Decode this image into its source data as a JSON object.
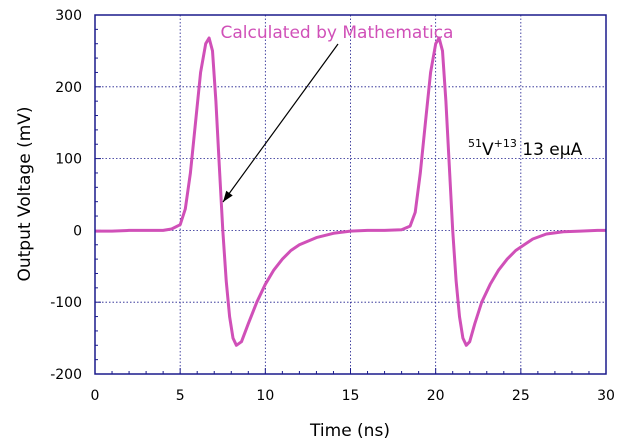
{
  "chart_data": {
    "type": "line",
    "xlabel": "Time (ns)",
    "ylabel": "Output Voltage (mV)",
    "xlim": [
      0,
      30
    ],
    "ylim": [
      -200,
      300
    ],
    "x_ticks": [
      "0",
      "5",
      "10",
      "15",
      "20",
      "25",
      "30"
    ],
    "y_ticks": [
      "300",
      "200",
      "100",
      "0",
      "-100",
      "-200"
    ],
    "grid": true,
    "series": [
      {
        "color": "#d050b8",
        "x": [
          0,
          1,
          2,
          3,
          4,
          4.5,
          5,
          5.3,
          5.6,
          5.9,
          6.2,
          6.5,
          6.7,
          6.9,
          7.1,
          7.3,
          7.5,
          7.7,
          7.9,
          8.1,
          8.3,
          8.6,
          9.0,
          9.5,
          10,
          10.5,
          11,
          11.5,
          12,
          13,
          14,
          15,
          16,
          17,
          18,
          18.5,
          18.8,
          19.1,
          19.4,
          19.7,
          20.0,
          20.2,
          20.4,
          20.6,
          20.8,
          21.0,
          21.2,
          21.4,
          21.6,
          21.8,
          22.0,
          22.3,
          22.7,
          23.2,
          23.7,
          24.2,
          24.7,
          25.2,
          25.7,
          26.5,
          27.5,
          28.5,
          29.5,
          30
        ],
        "y": [
          -1,
          -1,
          0,
          0,
          0,
          2,
          8,
          30,
          80,
          150,
          220,
          260,
          268,
          250,
          180,
          90,
          0,
          -70,
          -120,
          -150,
          -160,
          -155,
          -130,
          -100,
          -75,
          -55,
          -40,
          -28,
          -20,
          -10,
          -4,
          -1,
          0,
          0,
          1,
          6,
          25,
          80,
          150,
          220,
          260,
          268,
          250,
          180,
          90,
          0,
          -70,
          -120,
          -150,
          -160,
          -155,
          -130,
          -100,
          -75,
          -55,
          -40,
          -28,
          -20,
          -12,
          -5,
          -2,
          -1,
          0,
          0
        ]
      }
    ],
    "annotations": [
      {
        "text": "Calculated by Mathematica",
        "color": "#d050b8",
        "arrow_to_x": 7.5,
        "arrow_to_y": 40
      },
      {
        "text_sup1": "51",
        "text_main": "V",
        "text_sup2": "+13",
        "text_tail": " 13 eμA",
        "color": "#000000"
      }
    ]
  },
  "colors": {
    "frame": "#1a1a8c",
    "grid": "#1a1a8c",
    "curve": "#d050b8"
  }
}
